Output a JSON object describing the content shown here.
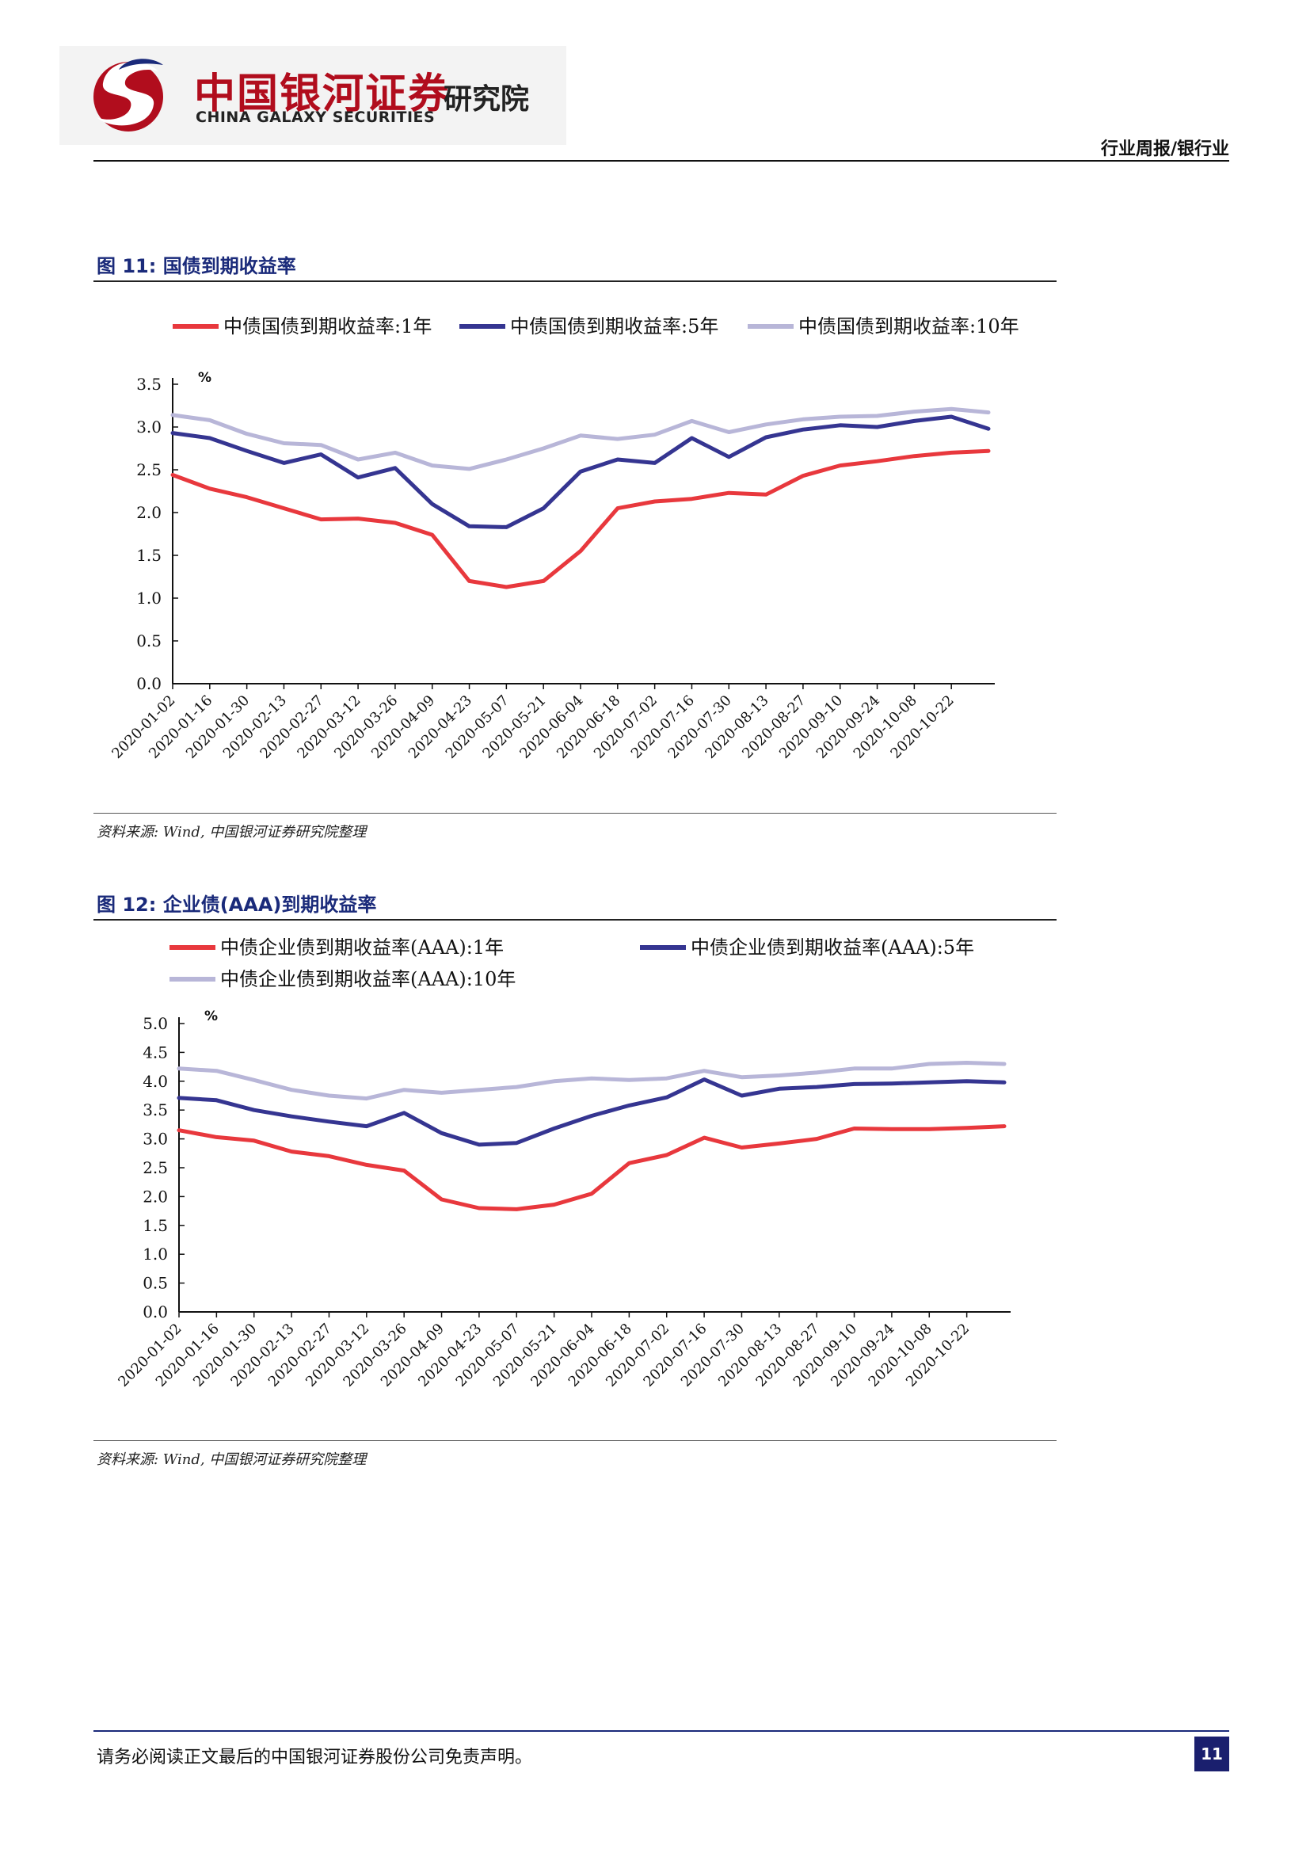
{
  "header": {
    "brand_cn": "中国银河证券",
    "brand_en": "CHINA GALAXY SECURITIES",
    "institute": "研究院",
    "doc_type": "行业周报/银行业"
  },
  "figures": [
    {
      "title": "图 11: 国债到期收益率",
      "source": "资料来源: Wind, 中国银河证券研究院整理"
    },
    {
      "title": "图 12: 企业债(AAA)到期收益率",
      "source": "资料来源: Wind, 中国银河证券研究院整理"
    }
  ],
  "colors": {
    "red": "#e8383d",
    "navy": "#353591",
    "lavender": "#b8b6d8",
    "title_blue": "#1a2a7a"
  },
  "footer": {
    "disclaimer": "请务必阅读正文最后的中国银河证券股份公司免责声明。",
    "page": "11"
  },
  "chart_data": [
    {
      "type": "line",
      "unit": "%",
      "ylim": [
        0,
        3.5
      ],
      "y_ticks": [
        "0.0",
        "0.5",
        "1.0",
        "1.5",
        "2.0",
        "2.5",
        "3.0",
        "3.5"
      ],
      "x": [
        "2020-01-02",
        "2020-01-16",
        "2020-01-30",
        "2020-02-13",
        "2020-02-27",
        "2020-03-12",
        "2020-03-26",
        "2020-04-09",
        "2020-04-23",
        "2020-05-07",
        "2020-05-21",
        "2020-06-04",
        "2020-06-18",
        "2020-07-02",
        "2020-07-16",
        "2020-07-30",
        "2020-08-13",
        "2020-08-27",
        "2020-09-10",
        "2020-09-24",
        "2020-10-08",
        "2020-10-22",
        "2020-11-05"
      ],
      "x_ticks": [
        "2020-01-02",
        "2020-01-16",
        "2020-01-30",
        "2020-02-13",
        "2020-02-27",
        "2020-03-12",
        "2020-03-26",
        "2020-04-09",
        "2020-04-23",
        "2020-05-07",
        "2020-05-21",
        "2020-06-04",
        "2020-06-18",
        "2020-07-02",
        "2020-07-16",
        "2020-07-30",
        "2020-08-13",
        "2020-08-27",
        "2020-09-10",
        "2020-09-24",
        "2020-10-08",
        "2020-10-22"
      ],
      "legend_rows": [
        [
          0,
          1,
          2
        ]
      ],
      "series": [
        {
          "name": "中债国债到期收益率:1年",
          "color": "#e8383d",
          "values": [
            2.44,
            2.28,
            2.18,
            2.05,
            1.92,
            1.93,
            1.88,
            1.74,
            1.2,
            1.13,
            1.2,
            1.55,
            2.05,
            2.13,
            2.16,
            2.23,
            2.21,
            2.43,
            2.55,
            2.6,
            2.66,
            2.7,
            2.72
          ]
        },
        {
          "name": "中债国债到期收益率:5年",
          "color": "#353591",
          "values": [
            2.93,
            2.87,
            2.72,
            2.58,
            2.68,
            2.41,
            2.52,
            2.1,
            1.84,
            1.83,
            2.05,
            2.48,
            2.62,
            2.58,
            2.87,
            2.65,
            2.88,
            2.97,
            3.02,
            3.0,
            3.07,
            3.12,
            2.98
          ]
        },
        {
          "name": "中债国债到期收益率:10年",
          "color": "#b8b6d8",
          "values": [
            3.14,
            3.08,
            2.92,
            2.81,
            2.79,
            2.62,
            2.7,
            2.55,
            2.51,
            2.62,
            2.75,
            2.9,
            2.86,
            2.91,
            3.07,
            2.94,
            3.03,
            3.09,
            3.12,
            3.13,
            3.18,
            3.21,
            3.17
          ]
        }
      ]
    },
    {
      "type": "line",
      "unit": "%",
      "ylim": [
        0,
        5.0
      ],
      "y_ticks": [
        "0.0",
        "0.5",
        "1.0",
        "1.5",
        "2.0",
        "2.5",
        "3.0",
        "3.5",
        "4.0",
        "4.5",
        "5.0"
      ],
      "x": [
        "2020-01-02",
        "2020-01-16",
        "2020-01-30",
        "2020-02-13",
        "2020-02-27",
        "2020-03-12",
        "2020-03-26",
        "2020-04-09",
        "2020-04-23",
        "2020-05-07",
        "2020-05-21",
        "2020-06-04",
        "2020-06-18",
        "2020-07-02",
        "2020-07-16",
        "2020-07-30",
        "2020-08-13",
        "2020-08-27",
        "2020-09-10",
        "2020-09-24",
        "2020-10-08",
        "2020-10-22",
        "2020-11-05"
      ],
      "x_ticks": [
        "2020-01-02",
        "2020-01-16",
        "2020-01-30",
        "2020-02-13",
        "2020-02-27",
        "2020-03-12",
        "2020-03-26",
        "2020-04-09",
        "2020-04-23",
        "2020-05-07",
        "2020-05-21",
        "2020-06-04",
        "2020-06-18",
        "2020-07-02",
        "2020-07-16",
        "2020-07-30",
        "2020-08-13",
        "2020-08-27",
        "2020-09-10",
        "2020-09-24",
        "2020-10-08",
        "2020-10-22"
      ],
      "legend_rows": [
        [
          0,
          1
        ],
        [
          2
        ]
      ],
      "series": [
        {
          "name": "中债企业债到期收益率(AAA):1年",
          "color": "#e8383d",
          "values": [
            3.15,
            3.03,
            2.97,
            2.78,
            2.7,
            2.55,
            2.45,
            1.95,
            1.8,
            1.78,
            1.86,
            2.05,
            2.58,
            2.72,
            3.02,
            2.85,
            2.92,
            3.0,
            3.18,
            3.17,
            3.17,
            3.19,
            3.22
          ]
        },
        {
          "name": "中债企业债到期收益率(AAA):5年",
          "color": "#353591",
          "values": [
            3.71,
            3.67,
            3.5,
            3.39,
            3.3,
            3.22,
            3.45,
            3.1,
            2.9,
            2.93,
            3.18,
            3.4,
            3.58,
            3.72,
            4.03,
            3.75,
            3.87,
            3.9,
            3.95,
            3.96,
            3.98,
            4.0,
            3.98
          ]
        },
        {
          "name": "中债企业债到期收益率(AAA):10年",
          "color": "#b8b6d8",
          "values": [
            4.22,
            4.18,
            4.02,
            3.85,
            3.75,
            3.7,
            3.85,
            3.8,
            3.85,
            3.9,
            4.0,
            4.05,
            4.02,
            4.05,
            4.18,
            4.07,
            4.1,
            4.15,
            4.22,
            4.22,
            4.3,
            4.32,
            4.3
          ]
        }
      ]
    }
  ]
}
